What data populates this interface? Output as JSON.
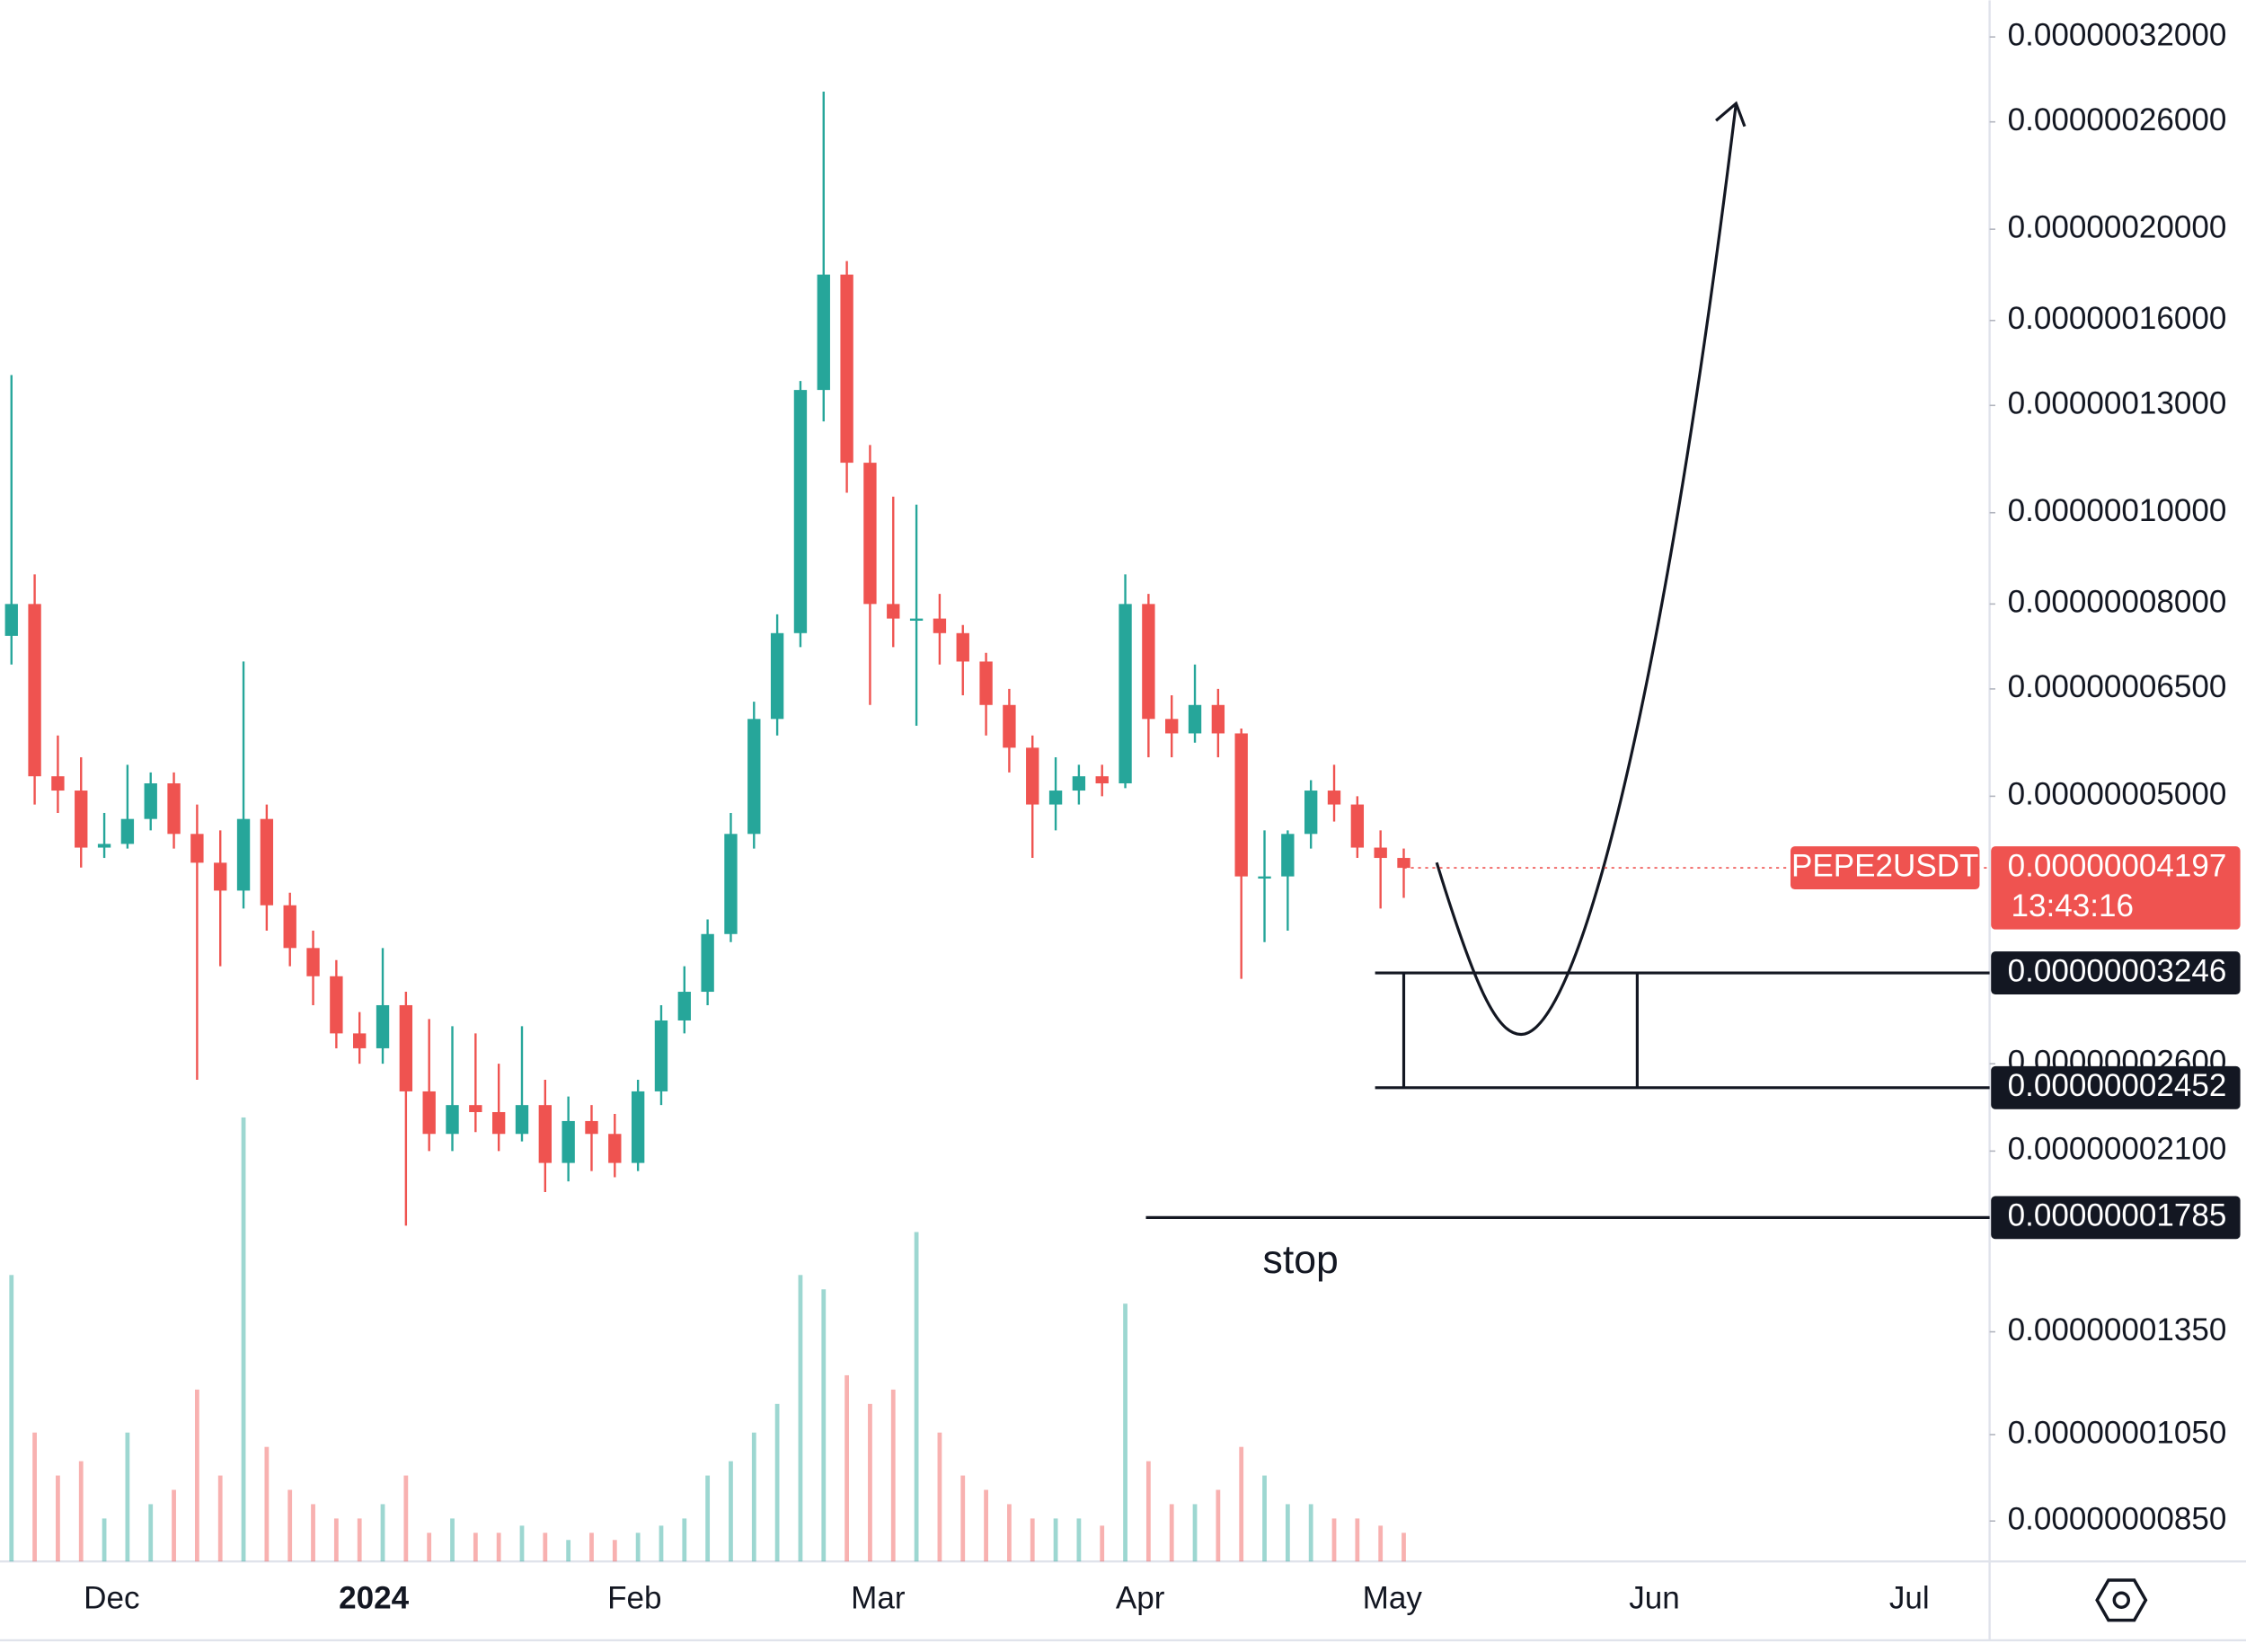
{
  "chart_data": {
    "type": "candlestick",
    "symbol": "PEPE2USDT",
    "countdown": "13:43:16",
    "last": {
      "value": 4.197e-08,
      "label": "0.00000004197"
    },
    "up_color": "#26a69a",
    "down_color": "#ef5350",
    "log_scale": true,
    "ylim": [
      7.7e-09,
      3.5e-07
    ],
    "yticks": [
      {
        "value": 3.2e-07,
        "label": "0.00000032000"
      },
      {
        "value": 2.6e-07,
        "label": "0.00000026000"
      },
      {
        "value": 2e-07,
        "label": "0.00000020000"
      },
      {
        "value": 1.6e-07,
        "label": "0.00000016000"
      },
      {
        "value": 1.3e-07,
        "label": "0.00000013000"
      },
      {
        "value": 1e-07,
        "label": "0.00000010000"
      },
      {
        "value": 8e-08,
        "label": "0.00000008000"
      },
      {
        "value": 6.5e-08,
        "label": "0.00000006500"
      },
      {
        "value": 5e-08,
        "label": "0.00000005000"
      },
      {
        "value": 2.6e-08,
        "label": "0.00000002600"
      },
      {
        "value": 2.1e-08,
        "label": "0.00000002100"
      },
      {
        "value": 1.35e-08,
        "label": "0.00000001350"
      },
      {
        "value": 1.05e-08,
        "label": "0.00000001050"
      },
      {
        "value": 8.5e-09,
        "label": "0.00000000850"
      }
    ],
    "categories": [
      "Dec",
      "2024",
      "Feb",
      "Mar",
      "Apr",
      "May",
      "Jun",
      "Jul"
    ],
    "levels": [
      {
        "value": 3.246e-08,
        "label": "0.00000003246"
      },
      {
        "value": 2.452e-08,
        "label": "0.00000002452"
      },
      {
        "value": 1.785e-08,
        "label": "0.00000001785"
      }
    ],
    "annotation": "stop",
    "ohlc": [
      [
        7.4e-08,
        1.4e-07,
        6.9e-08,
        8e-08
      ],
      [
        8e-08,
        8.6e-08,
        4.9e-08,
        5.25e-08
      ],
      [
        5.25e-08,
        5.8e-08,
        4.8e-08,
        5.07e-08
      ],
      [
        5.07e-08,
        5.5e-08,
        4.2e-08,
        4.41e-08
      ],
      [
        4.41e-08,
        4.8e-08,
        4.3e-08,
        4.45e-08
      ],
      [
        4.45e-08,
        5.4e-08,
        4.4e-08,
        4.73e-08
      ],
      [
        4.73e-08,
        5.3e-08,
        4.6e-08,
        5.16e-08
      ],
      [
        5.16e-08,
        5.3e-08,
        4.4e-08,
        4.56e-08
      ],
      [
        4.56e-08,
        4.9e-08,
        2.5e-08,
        4.25e-08
      ],
      [
        4.25e-08,
        4.6e-08,
        3.3e-08,
        3.97e-08
      ],
      [
        3.97e-08,
        6.95e-08,
        3.8e-08,
        4.73e-08
      ],
      [
        4.73e-08,
        4.9e-08,
        3.6e-08,
        3.83e-08
      ],
      [
        3.83e-08,
        3.95e-08,
        3.3e-08,
        3.45e-08
      ],
      [
        3.45e-08,
        3.6e-08,
        3e-08,
        3.22e-08
      ],
      [
        3.22e-08,
        3.35e-08,
        2.7e-08,
        2.8e-08
      ],
      [
        2.8e-08,
        2.95e-08,
        2.6e-08,
        2.7e-08
      ],
      [
        2.7e-08,
        3.45e-08,
        2.6e-08,
        3e-08
      ],
      [
        3e-08,
        3.1e-08,
        1.75e-08,
        2.43e-08
      ],
      [
        2.43e-08,
        2.9e-08,
        2.1e-08,
        2.19e-08
      ],
      [
        2.19e-08,
        2.85e-08,
        2.1e-08,
        2.35e-08
      ],
      [
        2.35e-08,
        2.8e-08,
        2.2e-08,
        2.31e-08
      ],
      [
        2.31e-08,
        2.6e-08,
        2.1e-08,
        2.19e-08
      ],
      [
        2.19e-08,
        2.85e-08,
        2.15e-08,
        2.35e-08
      ],
      [
        2.35e-08,
        2.5e-08,
        1.9e-08,
        2.04e-08
      ],
      [
        2.04e-08,
        2.4e-08,
        1.95e-08,
        2.26e-08
      ],
      [
        2.26e-08,
        2.35e-08,
        2e-08,
        2.19e-08
      ],
      [
        2.19e-08,
        2.3e-08,
        1.97e-08,
        2.04e-08
      ],
      [
        2.04e-08,
        2.5e-08,
        2e-08,
        2.43e-08
      ],
      [
        2.43e-08,
        3e-08,
        2.35e-08,
        2.89e-08
      ],
      [
        2.89e-08,
        3.3e-08,
        2.8e-08,
        3.1e-08
      ],
      [
        3.1e-08,
        3.7e-08,
        3e-08,
        3.57e-08
      ],
      [
        3.57e-08,
        4.8e-08,
        3.5e-08,
        4.56e-08
      ],
      [
        4.56e-08,
        6.3e-08,
        4.4e-08,
        6.04e-08
      ],
      [
        6.04e-08,
        7.8e-08,
        5.8e-08,
        7.45e-08
      ],
      [
        7.45e-08,
        1.38e-07,
        7.2e-08,
        1.35e-07
      ],
      [
        1.35e-07,
        2.8e-07,
        1.25e-07,
        1.79e-07
      ],
      [
        1.79e-07,
        1.85e-07,
        1.05e-07,
        1.13e-07
      ],
      [
        1.13e-07,
        1.18e-07,
        6.25e-08,
        8e-08
      ],
      [
        8e-08,
        1.04e-07,
        7.2e-08,
        7.72e-08
      ],
      [
        7.72e-08,
        1.02e-07,
        5.94e-08,
        7.72e-08
      ],
      [
        7.72e-08,
        8.2e-08,
        6.9e-08,
        7.45e-08
      ],
      [
        7.45e-08,
        7.6e-08,
        6.4e-08,
        6.95e-08
      ],
      [
        6.95e-08,
        7.1e-08,
        5.8e-08,
        6.25e-08
      ],
      [
        6.25e-08,
        6.5e-08,
        5.3e-08,
        5.63e-08
      ],
      [
        5.63e-08,
        5.8e-08,
        4.3e-08,
        4.9e-08
      ],
      [
        4.9e-08,
        5.5e-08,
        4.6e-08,
        5.07e-08
      ],
      [
        5.07e-08,
        5.4e-08,
        4.9e-08,
        5.25e-08
      ],
      [
        5.25e-08,
        5.4e-08,
        5e-08,
        5.16e-08
      ],
      [
        5.16e-08,
        8.6e-08,
        5.1e-08,
        8e-08
      ],
      [
        8e-08,
        8.2e-08,
        5.5e-08,
        6.04e-08
      ],
      [
        6.04e-08,
        6.4e-08,
        5.5e-08,
        5.83e-08
      ],
      [
        5.83e-08,
        6.9e-08,
        5.7e-08,
        6.25e-08
      ],
      [
        6.25e-08,
        6.5e-08,
        5.5e-08,
        5.83e-08
      ],
      [
        5.83e-08,
        5.9e-08,
        3.2e-08,
        4.11e-08
      ],
      [
        4.11e-08,
        4.6e-08,
        3.5e-08,
        4.11e-08
      ],
      [
        4.11e-08,
        4.6e-08,
        3.6e-08,
        4.56e-08
      ],
      [
        4.56e-08,
        5.2e-08,
        4.4e-08,
        5.07e-08
      ],
      [
        5.07e-08,
        5.4e-08,
        4.7e-08,
        4.9e-08
      ],
      [
        4.9e-08,
        5e-08,
        4.3e-08,
        4.41e-08
      ],
      [
        4.41e-08,
        4.6e-08,
        3.8e-08,
        4.3e-08
      ],
      [
        4.3e-08,
        4.4e-08,
        3.9e-08,
        4.197e-08
      ]
    ],
    "volume": [
      200,
      90,
      60,
      70,
      30,
      90,
      40,
      50,
      120,
      60,
      310,
      80,
      50,
      40,
      30,
      30,
      40,
      60,
      20,
      30,
      20,
      20,
      25,
      20,
      15,
      20,
      15,
      20,
      25,
      30,
      60,
      70,
      90,
      110,
      200,
      190,
      130,
      110,
      120,
      230,
      90,
      60,
      50,
      40,
      30,
      30,
      30,
      25,
      180,
      70,
      40,
      40,
      50,
      80,
      60,
      40,
      40,
      30,
      30,
      25,
      20
    ]
  }
}
